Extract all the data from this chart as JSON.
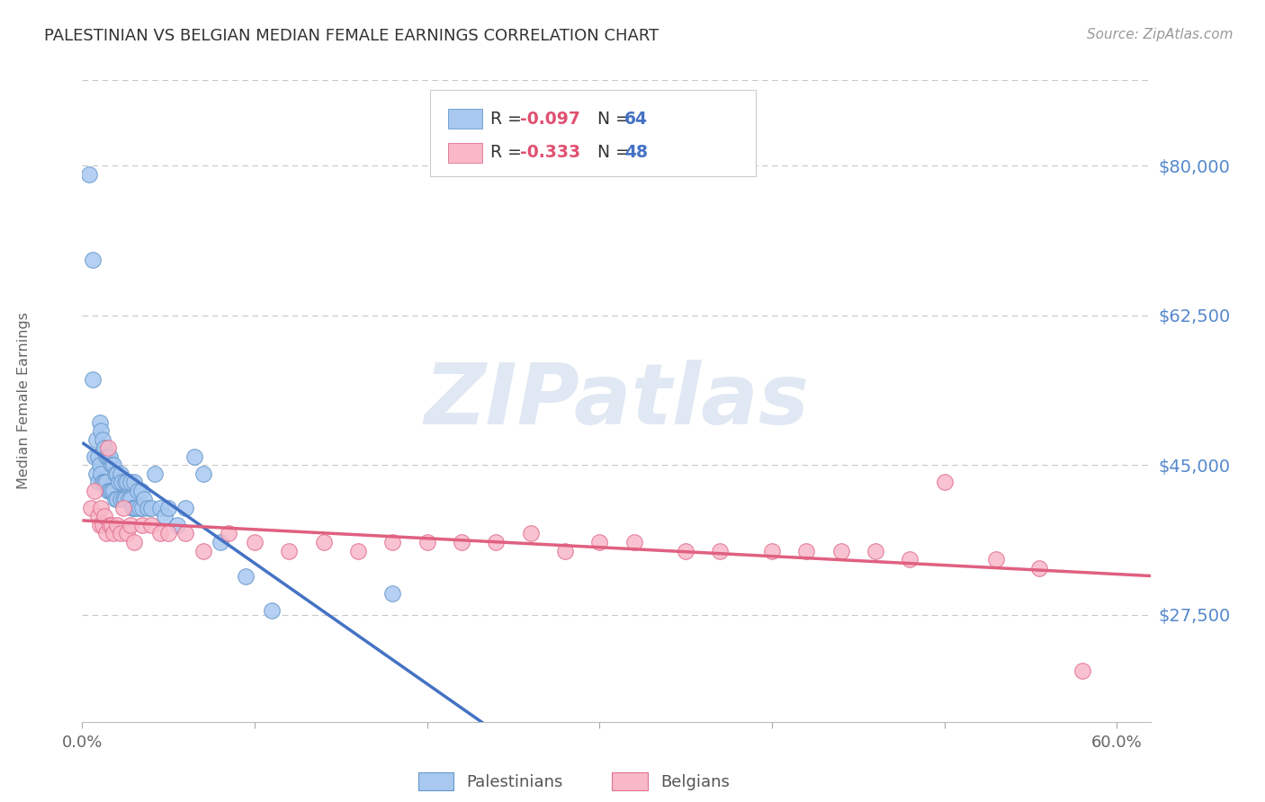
{
  "title": "PALESTINIAN VS BELGIAN MEDIAN FEMALE EARNINGS CORRELATION CHART",
  "source": "Source: ZipAtlas.com",
  "ylabel": "Median Female Earnings",
  "xlim": [
    0.0,
    0.62
  ],
  "ylim": [
    15000,
    90000
  ],
  "ytick_vals": [
    27500,
    45000,
    62500,
    80000
  ],
  "ytick_labels": [
    "$27,500",
    "$45,000",
    "$62,500",
    "$80,000"
  ],
  "xtick_positions": [
    0.0,
    0.1,
    0.2,
    0.3,
    0.4,
    0.5,
    0.6
  ],
  "xtick_labels": [
    "0.0%",
    "",
    "",
    "",
    "",
    "",
    "60.0%"
  ],
  "grid_color": "#c8c8c8",
  "background_color": "#ffffff",
  "title_color": "#333333",
  "axis_label_color": "#5588cc",
  "watermark_text": "ZIPatlas",
  "watermark_color": "#ccdaec",
  "pal_dot_face": "#a8c8f0",
  "pal_dot_edge": "#6699cc",
  "bel_dot_face": "#f8b8c8",
  "bel_dot_edge": "#e07090",
  "trendline_blue": "#4472c4",
  "trendline_pink": "#e06080",
  "trendline_dashed": "#88aacc",
  "legend_r_color": "#e05070",
  "legend_n_color": "#4472c4",
  "R_pal": -0.097,
  "N_pal": 64,
  "R_bel": -0.333,
  "N_bel": 48,
  "pal_x": [
    0.004,
    0.006,
    0.006,
    0.007,
    0.008,
    0.008,
    0.009,
    0.009,
    0.01,
    0.01,
    0.011,
    0.011,
    0.012,
    0.012,
    0.013,
    0.013,
    0.014,
    0.014,
    0.015,
    0.015,
    0.016,
    0.016,
    0.017,
    0.017,
    0.018,
    0.018,
    0.019,
    0.019,
    0.02,
    0.02,
    0.021,
    0.022,
    0.022,
    0.023,
    0.024,
    0.025,
    0.025,
    0.026,
    0.027,
    0.028,
    0.028,
    0.029,
    0.03,
    0.03,
    0.031,
    0.032,
    0.033,
    0.034,
    0.035,
    0.036,
    0.038,
    0.04,
    0.042,
    0.045,
    0.048,
    0.05,
    0.055,
    0.06,
    0.065,
    0.07,
    0.08,
    0.095,
    0.11,
    0.18
  ],
  "pal_y": [
    79000,
    55000,
    69000,
    46000,
    48000,
    44000,
    46000,
    43000,
    50000,
    45000,
    49000,
    44000,
    48000,
    43000,
    47000,
    43000,
    46000,
    43000,
    46000,
    42000,
    46000,
    42000,
    45000,
    42000,
    45000,
    42000,
    44000,
    41000,
    44000,
    41000,
    43000,
    44000,
    41000,
    43000,
    41000,
    43000,
    41000,
    43000,
    41000,
    43000,
    41000,
    40000,
    43000,
    40000,
    40000,
    42000,
    40000,
    42000,
    40000,
    41000,
    40000,
    40000,
    44000,
    40000,
    39000,
    40000,
    38000,
    40000,
    46000,
    44000,
    36000,
    32000,
    28000,
    30000
  ],
  "bel_x": [
    0.005,
    0.007,
    0.009,
    0.01,
    0.011,
    0.012,
    0.013,
    0.014,
    0.015,
    0.016,
    0.017,
    0.018,
    0.02,
    0.022,
    0.024,
    0.026,
    0.028,
    0.03,
    0.035,
    0.04,
    0.045,
    0.05,
    0.06,
    0.07,
    0.085,
    0.1,
    0.12,
    0.14,
    0.16,
    0.18,
    0.2,
    0.22,
    0.24,
    0.26,
    0.28,
    0.3,
    0.32,
    0.35,
    0.37,
    0.4,
    0.42,
    0.44,
    0.46,
    0.48,
    0.5,
    0.53,
    0.555,
    0.58
  ],
  "bel_y": [
    40000,
    42000,
    39000,
    38000,
    40000,
    38000,
    39000,
    37000,
    47000,
    38000,
    38000,
    37000,
    38000,
    37000,
    40000,
    37000,
    38000,
    36000,
    38000,
    38000,
    37000,
    37000,
    37000,
    35000,
    37000,
    36000,
    35000,
    36000,
    35000,
    36000,
    36000,
    36000,
    36000,
    37000,
    35000,
    36000,
    36000,
    35000,
    35000,
    35000,
    35000,
    35000,
    35000,
    34000,
    43000,
    34000,
    33000,
    21000
  ]
}
